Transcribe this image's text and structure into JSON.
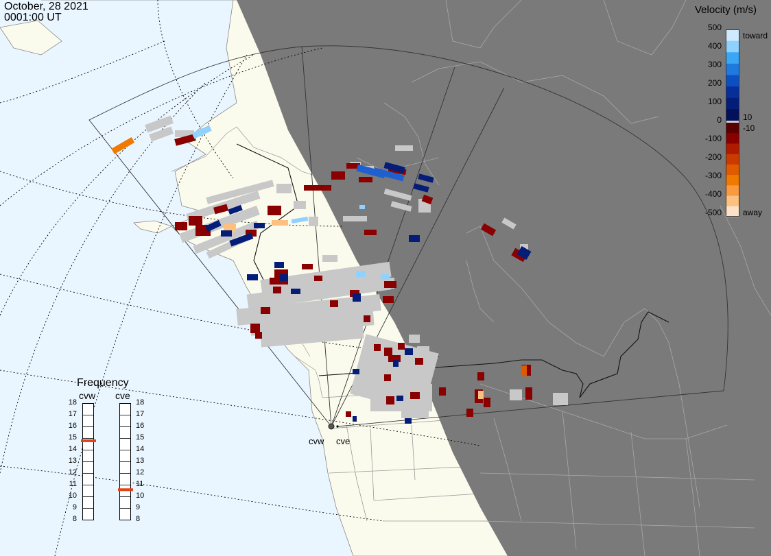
{
  "timestamp": {
    "date": "October, 28 2021",
    "time": "0001:00 UT"
  },
  "velocity_legend": {
    "title": "Velocity (m/s)",
    "ticks": [
      "500",
      "400",
      "300",
      "200",
      "100",
      "0",
      "-100",
      "-200",
      "-300",
      "-400",
      "-500"
    ],
    "toward_label": "toward",
    "away_label": "away",
    "pos_threshold": "10",
    "neg_threshold": "-10",
    "colors": {
      "toward": [
        "#cfeaff",
        "#8fd2ff",
        "#3aa6f6",
        "#1f7ae0",
        "#0c4fc2",
        "#062f99",
        "#041d78",
        "#03105a"
      ],
      "away": [
        "#5a0000",
        "#8a0000",
        "#b01a00",
        "#cc3a00",
        "#e05a00",
        "#f07a00",
        "#f99a40",
        "#fcc080",
        "#fde2c8"
      ]
    }
  },
  "frequency": {
    "title": "Frequency",
    "radars": [
      {
        "name": "cvw",
        "value": 14.8
      },
      {
        "name": "cve",
        "value": 10.6
      }
    ],
    "ticks": [
      "18",
      "17",
      "16",
      "15",
      "14",
      "13",
      "12",
      "11",
      "10",
      "9",
      "8"
    ],
    "marker_color": "#e0431a"
  },
  "radar_sites": [
    {
      "name": "cvw"
    },
    {
      "name": "cve"
    }
  ],
  "map_colors": {
    "ocean": "#eaf6ff",
    "land": "#fbfbed",
    "night": "#7a7a7a",
    "ground_scatter": "#c8c8c8",
    "coast_day": "#777777",
    "coast_night": "#9a9a9a",
    "fov_line": "#555555"
  }
}
